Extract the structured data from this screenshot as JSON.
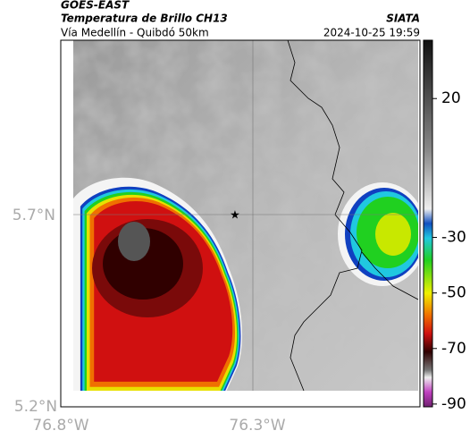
{
  "header": {
    "satellite": "GOES-EAST",
    "title": "Temperatura de Brillo CH13",
    "subtitle": "Vía Medellín - Quibdó 50km",
    "source": "SIATA",
    "timestamp": "2024-10-25 19:59"
  },
  "map": {
    "lat_labels": [
      "5.7°N",
      "5.2°N"
    ],
    "lon_labels": [
      "76.8°W",
      "76.3°W"
    ]
  },
  "colorbar": {
    "range": [
      -91,
      41
    ],
    "ticks": [
      20,
      -30,
      -50,
      -70,
      -90
    ]
  }
}
